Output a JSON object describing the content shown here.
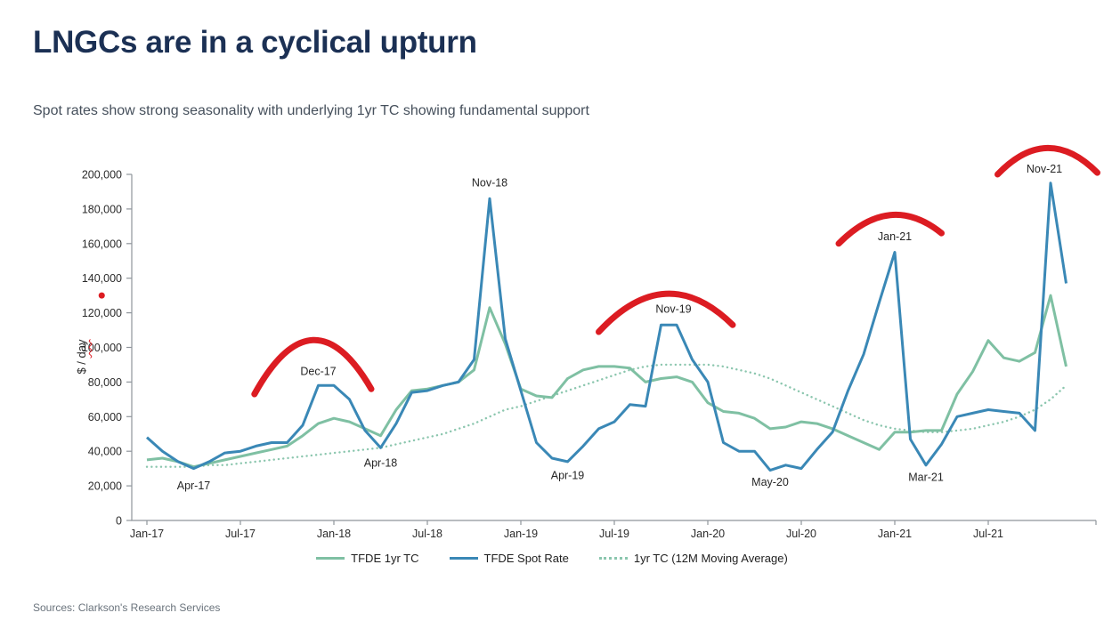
{
  "header": {
    "title": "LNGCs are in a cyclical upturn",
    "subtitle": "Spot rates show strong seasonality with underlying 1yr TC showing fundamental support"
  },
  "footer": {
    "sources": "Sources: Clarkson's Research Services"
  },
  "colors": {
    "title_navy": "#1b3054",
    "spot_rate_blue": "#3a88b6",
    "tc_green": "#7fc0a3",
    "ma_dotted_green": "#8bc6ae",
    "annotation_red": "#dc1c22",
    "axis_gray": "#8f959b"
  },
  "chart_data": {
    "type": "line",
    "title": "",
    "xlabel": "",
    "ylabel": "$ / day",
    "ylim": [
      0,
      200000
    ],
    "grid": false,
    "legend_position": "bottom-center",
    "y_axis": {
      "title_prefix": "$ / ",
      "title_word": "day",
      "ticks": [
        {
          "value": 0,
          "label": "0"
        },
        {
          "value": 20000,
          "label": "20,000"
        },
        {
          "value": 40000,
          "label": "40,000"
        },
        {
          "value": 60000,
          "label": "60,000"
        },
        {
          "value": 80000,
          "label": "80,000"
        },
        {
          "value": 100000,
          "label": "100,000"
        },
        {
          "value": 120000,
          "label": "120,000"
        },
        {
          "value": 140000,
          "label": "140,000"
        },
        {
          "value": 160000,
          "label": "160,000"
        },
        {
          "value": 180000,
          "label": "180,000"
        },
        {
          "value": 200000,
          "label": "200,000"
        }
      ]
    },
    "x_ticks": [
      {
        "month_index": 0,
        "label": "Jan-17"
      },
      {
        "month_index": 6,
        "label": "Jul-17"
      },
      {
        "month_index": 12,
        "label": "Jan-18"
      },
      {
        "month_index": 18,
        "label": "Jul-18"
      },
      {
        "month_index": 24,
        "label": "Jan-19"
      },
      {
        "month_index": 30,
        "label": "Jul-19"
      },
      {
        "month_index": 36,
        "label": "Jan-20"
      },
      {
        "month_index": 42,
        "label": "Jul-20"
      },
      {
        "month_index": 48,
        "label": "Jan-21"
      },
      {
        "month_index": 54,
        "label": "Jul-21"
      }
    ],
    "months": [
      "Jan-17",
      "Feb-17",
      "Mar-17",
      "Apr-17",
      "May-17",
      "Jun-17",
      "Jul-17",
      "Aug-17",
      "Sep-17",
      "Oct-17",
      "Nov-17",
      "Dec-17",
      "Jan-18",
      "Feb-18",
      "Mar-18",
      "Apr-18",
      "May-18",
      "Jun-18",
      "Jul-18",
      "Aug-18",
      "Sep-18",
      "Oct-18",
      "Nov-18",
      "Dec-18",
      "Jan-19",
      "Feb-19",
      "Mar-19",
      "Apr-19",
      "May-19",
      "Jun-19",
      "Jul-19",
      "Aug-19",
      "Sep-19",
      "Oct-19",
      "Nov-19",
      "Dec-19",
      "Jan-20",
      "Feb-20",
      "Mar-20",
      "Apr-20",
      "May-20",
      "Jun-20",
      "Jul-20",
      "Aug-20",
      "Sep-20",
      "Oct-20",
      "Nov-20",
      "Dec-20",
      "Jan-21",
      "Feb-21",
      "Mar-21",
      "Apr-21",
      "May-21",
      "Jun-21",
      "Jul-21",
      "Aug-21",
      "Sep-21",
      "Oct-21",
      "Nov-21",
      "Dec-21"
    ],
    "series": [
      {
        "name": "1yr TC (12M Moving Average)",
        "style": "dotted",
        "color": "#8bc6ae",
        "values": [
          31000,
          31000,
          31000,
          31000,
          32000,
          32000,
          33000,
          34000,
          35000,
          36000,
          37000,
          38000,
          39000,
          40000,
          41000,
          42000,
          44000,
          46000,
          48000,
          50000,
          53000,
          56000,
          60000,
          64000,
          66000,
          69000,
          72000,
          75000,
          78000,
          81000,
          84000,
          87000,
          89000,
          90000,
          90000,
          90000,
          90000,
          89000,
          87000,
          85000,
          82000,
          78000,
          74000,
          70000,
          66000,
          62000,
          58000,
          55000,
          53000,
          52000,
          51000,
          51000,
          52000,
          53000,
          55000,
          57000,
          60000,
          64000,
          70000,
          78000
        ]
      },
      {
        "name": "TFDE 1yr TC",
        "style": "solid",
        "color": "#7fc0a3",
        "values": [
          35000,
          36000,
          34000,
          31000,
          33000,
          35000,
          37000,
          39000,
          41000,
          43000,
          49000,
          56000,
          59000,
          57000,
          53000,
          49000,
          64000,
          75000,
          76000,
          78000,
          80000,
          87000,
          123000,
          102000,
          76000,
          72000,
          71000,
          82000,
          87000,
          89000,
          89000,
          88000,
          80000,
          82000,
          83000,
          80000,
          68000,
          63000,
          62000,
          59000,
          53000,
          54000,
          57000,
          56000,
          53000,
          49000,
          45000,
          41000,
          51000,
          51000,
          52000,
          52000,
          73000,
          86000,
          104000,
          94000,
          92000,
          97000,
          130000,
          89000
        ]
      },
      {
        "name": "TFDE Spot Rate",
        "style": "solid",
        "color": "#3a88b6",
        "values": [
          48000,
          40000,
          34000,
          30000,
          34000,
          39000,
          40000,
          43000,
          45000,
          45000,
          55000,
          78000,
          78000,
          70000,
          52000,
          42000,
          56000,
          74000,
          75000,
          78000,
          80000,
          93000,
          186000,
          105000,
          75000,
          45000,
          36000,
          34000,
          43000,
          53000,
          57000,
          67000,
          66000,
          113000,
          113000,
          93000,
          80000,
          45000,
          40000,
          40000,
          29000,
          32000,
          30000,
          41000,
          51000,
          75000,
          96000,
          126000,
          155000,
          47000,
          32000,
          44000,
          60000,
          62000,
          64000,
          63000,
          62000,
          52000,
          195000,
          137000
        ]
      }
    ],
    "legend": [
      {
        "label": "TFDE 1yr TC",
        "marker": "line-solid-green"
      },
      {
        "label": "TFDE Spot Rate",
        "marker": "line-solid-blue"
      },
      {
        "label": "1yr TC (12M Moving Average)",
        "marker": "line-dotted-green"
      }
    ],
    "point_labels": [
      {
        "text": "Apr-17",
        "month_index": 3,
        "label_value": 18000
      },
      {
        "text": "Dec-17",
        "month_index": 11,
        "label_value": 84000
      },
      {
        "text": "Apr-18",
        "month_index": 15,
        "label_value": 31000
      },
      {
        "text": "Nov-18",
        "month_index": 22,
        "label_value": 193000
      },
      {
        "text": "Apr-19",
        "month_index": 27,
        "label_value": 24000
      },
      {
        "text": "Nov-19",
        "month_index": 33.8,
        "label_value": 120000
      },
      {
        "text": "May-20",
        "month_index": 40,
        "label_value": 20000
      },
      {
        "text": "Jan-21",
        "month_index": 48,
        "label_value": 162000
      },
      {
        "text": "Mar-21",
        "month_index": 50,
        "label_value": 23000
      },
      {
        "text": "Nov-21",
        "month_index": 57.6,
        "label_value": 201000
      }
    ],
    "seasonal_peak_arcs": [
      {
        "from_month": 6.9,
        "from_value": 73000,
        "to_month": 14.4,
        "to_value": 76000,
        "control_value": 134000
      },
      {
        "from_month": 29.0,
        "from_value": 109000,
        "to_month": 37.6,
        "to_value": 113000,
        "control_value": 151000
      },
      {
        "from_month": 44.4,
        "from_value": 160000,
        "to_month": 51.0,
        "to_value": 166000,
        "control_value": 190000
      },
      {
        "from_month": 54.6,
        "from_value": 200000,
        "to_month": 61.0,
        "to_value": 201000,
        "control_value": 230000
      }
    ],
    "stray_dot": {
      "month_index": -2.9,
      "value": 130000
    }
  }
}
